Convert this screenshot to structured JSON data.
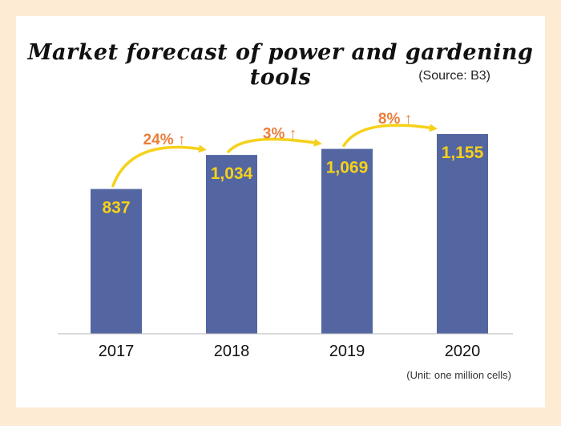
{
  "chart_data": {
    "type": "bar",
    "title": "Market forecast of power and gardening tools",
    "source": "(Source: B3)",
    "unit_note": "(Unit: one million cells)",
    "categories": [
      "2017",
      "2018",
      "2019",
      "2020"
    ],
    "values": [
      837,
      1034,
      1069,
      1155
    ],
    "value_labels": [
      "837",
      "1,034",
      "1,069",
      "1,155"
    ],
    "growth": [
      {
        "from": "2017",
        "to": "2018",
        "label": "24% ↑"
      },
      {
        "from": "2018",
        "to": "2019",
        "label": "3% ↑"
      },
      {
        "from": "2019",
        "to": "2020",
        "label": "8% ↑"
      }
    ],
    "ylim": [
      0,
      1350
    ],
    "grid": false,
    "colors": {
      "bar": "#5366a1",
      "value_label": "#f6d11a",
      "growth_label": "#ea7e3c",
      "arrow": "#f6d11a",
      "background": "#fdebd3"
    }
  }
}
